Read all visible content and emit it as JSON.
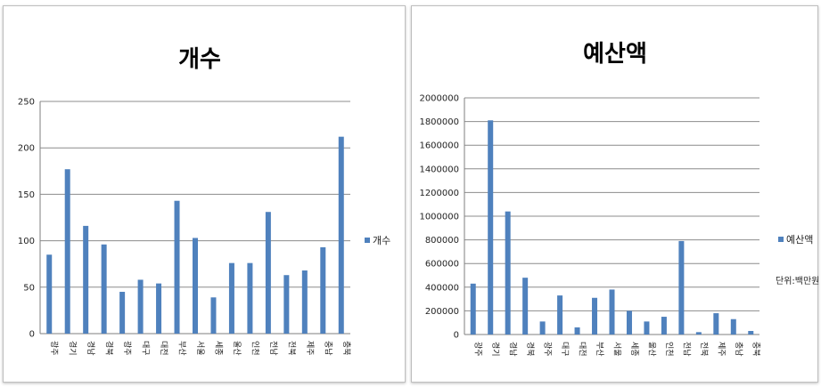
{
  "colors": {
    "bar": "#4f81bd",
    "grid": "#8c8c8c",
    "axis": "#7f7f7f"
  },
  "chart_data": [
    {
      "type": "bar",
      "title": "개수",
      "categories": [
        "광주",
        "경기",
        "경남",
        "경북",
        "광주",
        "대구",
        "대전",
        "부산",
        "서울",
        "세종",
        "울산",
        "인천",
        "전남",
        "전북",
        "제주",
        "충남",
        "충북"
      ],
      "series": [
        {
          "name": "개수",
          "values": [
            85,
            177,
            116,
            96,
            45,
            58,
            54,
            143,
            103,
            39,
            76,
            76,
            131,
            63,
            68,
            93,
            212
          ]
        }
      ],
      "ylim": [
        0,
        250
      ],
      "yticks": [
        0,
        50,
        100,
        150,
        200,
        250
      ],
      "grid": true,
      "legend": "right"
    },
    {
      "type": "bar",
      "title": "예산액",
      "categories": [
        "광주",
        "경기",
        "경남",
        "경북",
        "광주",
        "대구",
        "대전",
        "부산",
        "서울",
        "세종",
        "울산",
        "인천",
        "전남",
        "전북",
        "제주",
        "충남",
        "충북"
      ],
      "series": [
        {
          "name": "예산액",
          "values": [
            430000,
            1810000,
            1040000,
            480000,
            110000,
            330000,
            60000,
            310000,
            380000,
            200000,
            110000,
            150000,
            790000,
            20000,
            180000,
            130000,
            30000
          ]
        }
      ],
      "ylim": [
        0,
        2000000
      ],
      "yticks": [
        0,
        200000,
        400000,
        600000,
        800000,
        1000000,
        1200000,
        1400000,
        1600000,
        1800000,
        2000000
      ],
      "grid": true,
      "legend": "right",
      "note": "단위:백만원"
    }
  ]
}
